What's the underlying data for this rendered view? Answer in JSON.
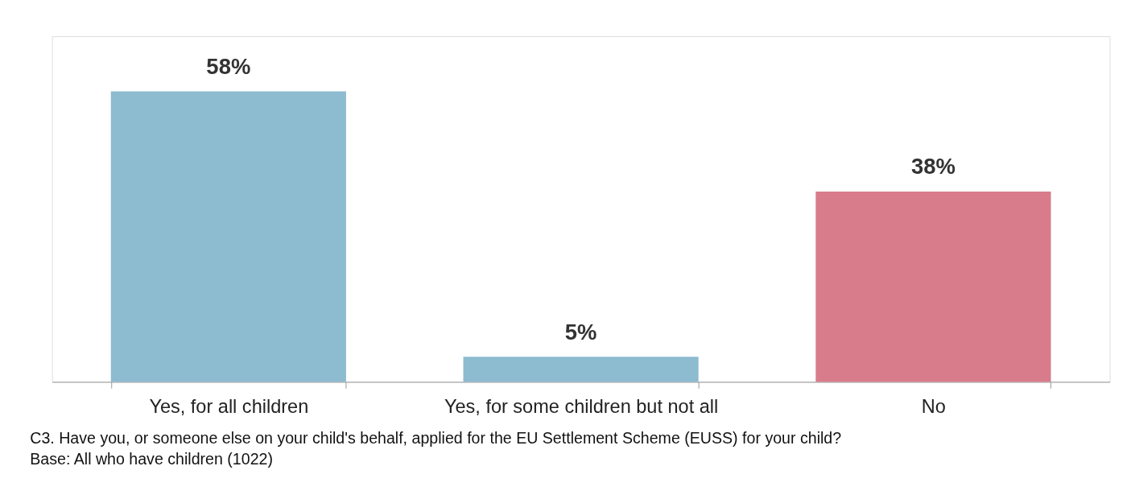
{
  "chart_data": {
    "type": "bar",
    "categories": [
      "Yes, for all children",
      "Yes, for some children but not all",
      "No"
    ],
    "values": [
      58,
      5,
      38
    ],
    "colors": [
      "#8dbbd0",
      "#8dbbd0",
      "#d87c8c"
    ],
    "data_labels": true,
    "value_labels": [
      "58%",
      "5%",
      "38%"
    ],
    "grid": false,
    "tick_labels": "x",
    "annotations": [
      "C3. Have you, or someone else on your child's behalf, applied for the EU Settlement Scheme (EUSS) for your child?",
      "Base: All who have children (1022)"
    ]
  }
}
